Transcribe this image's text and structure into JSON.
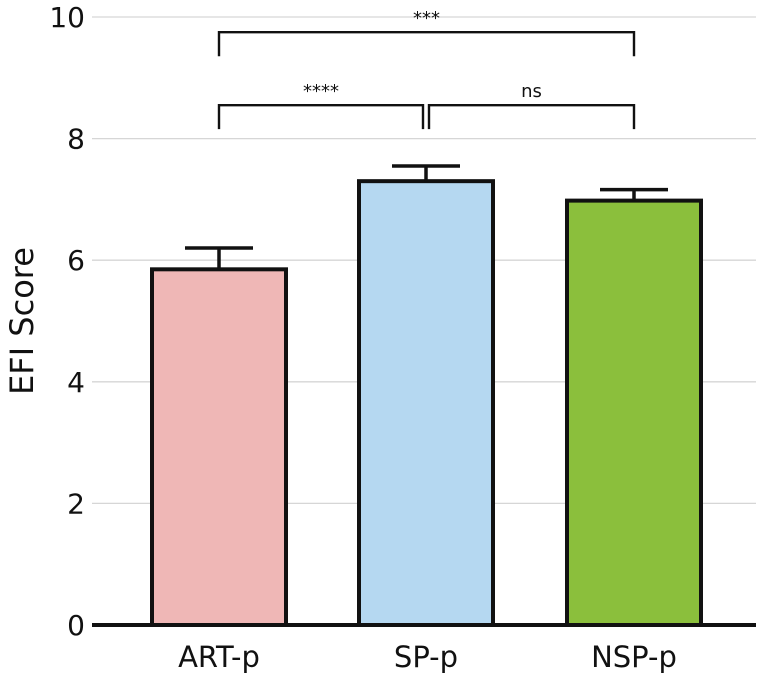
{
  "chart_data": {
    "type": "bar",
    "title": "",
    "xlabel": "",
    "ylabel": "EFI Score",
    "ylim": [
      0,
      10
    ],
    "yticks": [
      0,
      2,
      4,
      6,
      8,
      10
    ],
    "ytick_labels": [
      "0",
      "2",
      "4",
      "6",
      "8",
      "10"
    ],
    "grid": true,
    "categories": [
      "ART-p",
      "SP-p",
      "NSP-p"
    ],
    "values": [
      5.85,
      7.3,
      6.98
    ],
    "errors": [
      0.35,
      0.25,
      0.18
    ],
    "colors": [
      "#efb7b6",
      "#b5d8f1",
      "#8bbf3c"
    ],
    "comparisons": [
      {
        "from": 0,
        "to": 2,
        "label": "***",
        "level": 9.75
      },
      {
        "from": 0,
        "to": 1,
        "label": "****",
        "level": 8.55
      },
      {
        "from": 1,
        "to": 2,
        "label": "ns",
        "level": 8.55
      }
    ]
  }
}
